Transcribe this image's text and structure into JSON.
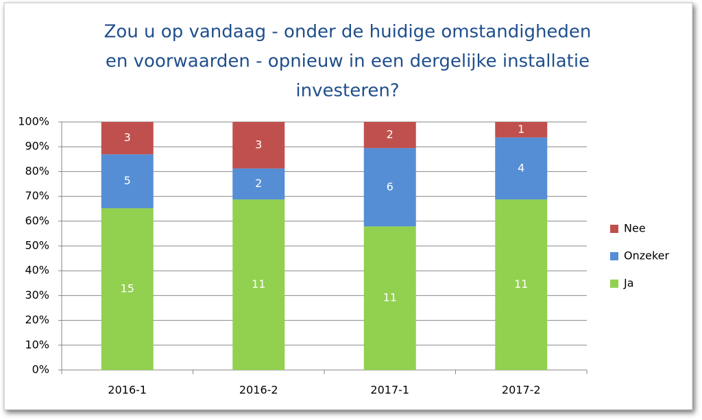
{
  "chart_data": {
    "type": "bar",
    "stacking": "percent",
    "title": [
      "Zou u op vandaag - onder de huidige omstandigheden",
      "en voorwaarden - opnieuw in een dergelijke installatie",
      "investeren?"
    ],
    "categories": [
      "2016-1",
      "2016-2",
      "2017-1",
      "2017-2"
    ],
    "series": [
      {
        "name": "Ja",
        "color": "#92d050",
        "values": [
          15,
          11,
          11,
          11
        ]
      },
      {
        "name": "Onzeker",
        "color": "#558ed5",
        "values": [
          5,
          2,
          6,
          4
        ]
      },
      {
        "name": "Nee",
        "color": "#c0504d",
        "values": [
          3,
          3,
          2,
          1
        ]
      }
    ],
    "ylim": [
      0,
      100
    ],
    "yticks": [
      {
        "value": 0,
        "label": "0%"
      },
      {
        "value": 10,
        "label": "10%"
      },
      {
        "value": 20,
        "label": "20%"
      },
      {
        "value": 30,
        "label": "30%"
      },
      {
        "value": 40,
        "label": "40%"
      },
      {
        "value": 50,
        "label": "50%"
      },
      {
        "value": 60,
        "label": "60%"
      },
      {
        "value": 70,
        "label": "70%"
      },
      {
        "value": 80,
        "label": "80%"
      },
      {
        "value": 90,
        "label": "90%"
      },
      {
        "value": 100,
        "label": "100%"
      }
    ],
    "grid": true,
    "legend": "right"
  }
}
